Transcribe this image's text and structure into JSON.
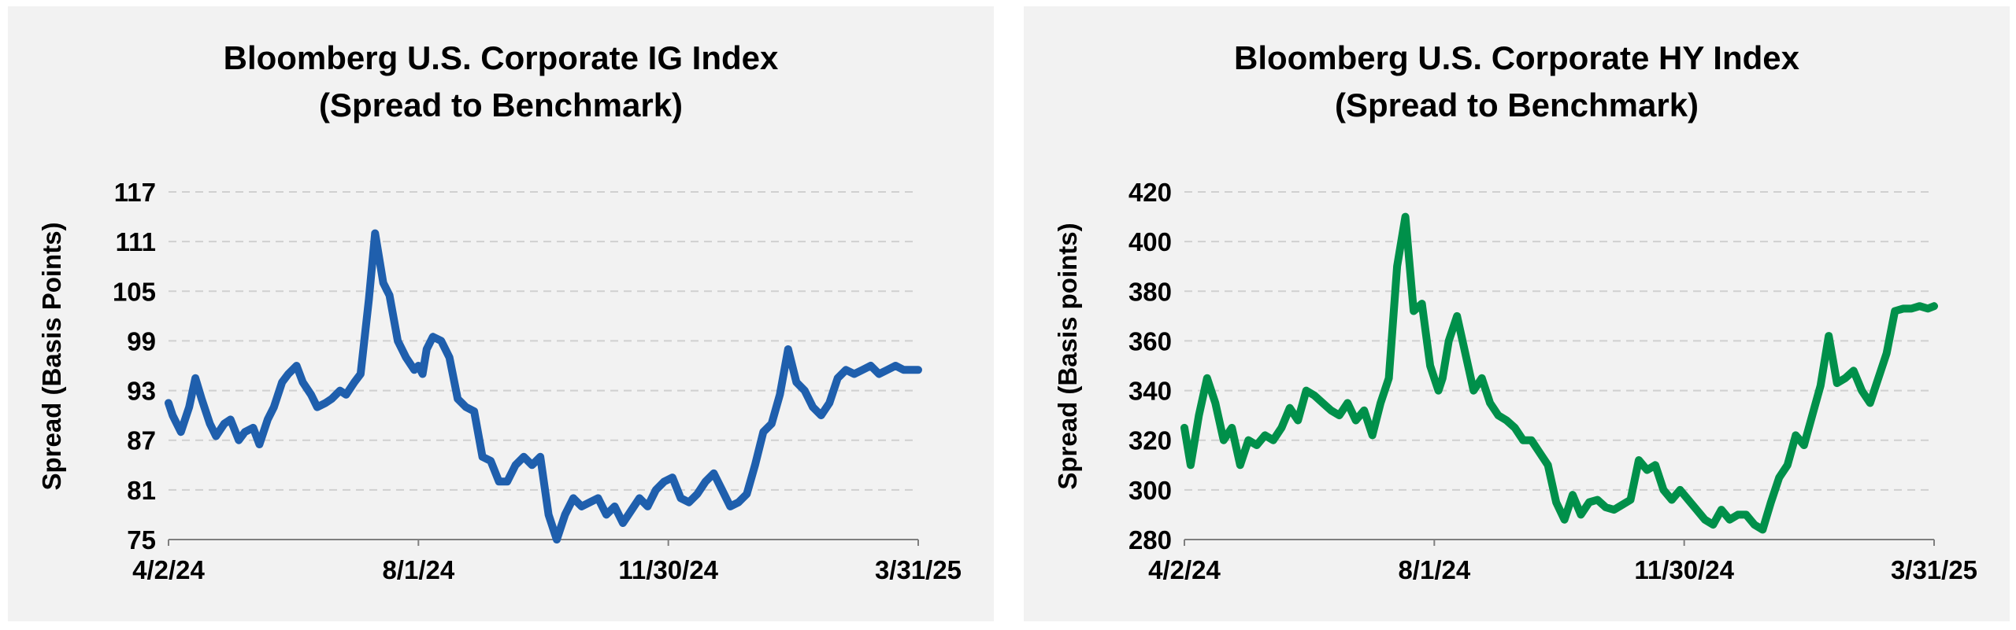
{
  "chart_data": [
    {
      "type": "line",
      "title": [
        "Bloomberg U.S. Corporate  IG Index",
        "(Spread to Benchmark)"
      ],
      "xlabel": "",
      "ylabel": "Spread (Basis Points)",
      "x_ticks": [
        "4/2/24",
        "8/1/24",
        "11/30/24",
        "3/31/25"
      ],
      "x_range": [
        "2024-04-02",
        "2025-03-31"
      ],
      "y_ticks": [
        75,
        81,
        87,
        93,
        99,
        105,
        111,
        117
      ],
      "ylim": [
        75,
        117
      ],
      "grid": true,
      "legend": "none",
      "color": "#1f5fad",
      "series": [
        {
          "x": [
            "2024-04-02",
            "2024-04-04",
            "2024-04-08",
            "2024-04-12",
            "2024-04-15",
            "2024-04-18",
            "2024-04-22",
            "2024-04-25",
            "2024-04-29",
            "2024-05-02",
            "2024-05-06",
            "2024-05-09",
            "2024-05-13",
            "2024-05-16",
            "2024-05-20",
            "2024-05-23",
            "2024-05-27",
            "2024-05-30",
            "2024-06-03",
            "2024-06-06",
            "2024-06-10",
            "2024-06-13",
            "2024-06-17",
            "2024-06-20",
            "2024-06-24",
            "2024-06-27",
            "2024-07-01",
            "2024-07-04",
            "2024-07-08",
            "2024-07-11",
            "2024-07-15",
            "2024-07-18",
            "2024-07-22",
            "2024-07-26",
            "2024-07-30",
            "2024-08-01",
            "2024-08-03",
            "2024-08-05",
            "2024-08-08",
            "2024-08-12",
            "2024-08-16",
            "2024-08-20",
            "2024-08-24",
            "2024-08-28",
            "2024-09-01",
            "2024-09-05",
            "2024-09-09",
            "2024-09-13",
            "2024-09-17",
            "2024-09-21",
            "2024-09-25",
            "2024-09-29",
            "2024-10-03",
            "2024-10-07",
            "2024-10-11",
            "2024-10-15",
            "2024-10-19",
            "2024-10-23",
            "2024-10-27",
            "2024-10-31",
            "2024-11-04",
            "2024-11-08",
            "2024-11-12",
            "2024-11-16",
            "2024-11-20",
            "2024-11-24",
            "2024-11-28",
            "2024-12-02",
            "2024-12-06",
            "2024-12-10",
            "2024-12-14",
            "2024-12-18",
            "2024-12-22",
            "2024-12-26",
            "2024-12-30",
            "2025-01-03",
            "2025-01-07",
            "2025-01-11",
            "2025-01-15",
            "2025-01-19",
            "2025-01-23",
            "2025-01-27",
            "2025-01-31",
            "2025-02-04",
            "2025-02-08",
            "2025-02-12",
            "2025-02-16",
            "2025-02-20",
            "2025-02-24",
            "2025-02-28",
            "2025-03-04",
            "2025-03-08",
            "2025-03-12",
            "2025-03-16",
            "2025-03-20",
            "2025-03-24",
            "2025-03-28",
            "2025-03-31"
          ],
          "y": [
            91.5,
            90,
            88,
            91,
            94.5,
            92,
            89,
            87.5,
            89,
            89.5,
            87,
            88,
            88.5,
            86.5,
            89.5,
            91,
            94,
            95,
            96,
            94,
            92.5,
            91,
            91.5,
            92,
            93,
            92.5,
            94,
            95,
            104,
            112,
            106,
            104.5,
            99,
            97,
            95.5,
            96,
            95,
            98,
            99.5,
            99,
            97,
            92,
            91,
            90.5,
            85,
            84.5,
            82,
            82,
            84,
            85,
            84,
            85,
            78,
            75,
            78,
            80,
            79,
            79.5,
            80,
            78,
            79,
            77,
            78.5,
            80,
            79,
            81,
            82,
            82.5,
            80,
            79.5,
            80.5,
            82,
            83,
            81,
            79,
            79.5,
            80.5,
            84,
            88,
            89,
            92.5,
            98,
            94,
            93,
            91,
            90,
            91.5,
            94.5,
            95.5,
            95,
            95.5,
            96,
            95,
            95.5,
            96,
            95.5,
            95.5,
            95.5
          ]
        }
      ]
    },
    {
      "type": "line",
      "title": [
        "Bloomberg U.S. Corporate HY Index",
        "(Spread to Benchmark)"
      ],
      "xlabel": "",
      "ylabel": "Spread (Basis points)",
      "x_ticks": [
        "4/2/24",
        "8/1/24",
        "11/30/24",
        "3/31/25"
      ],
      "x_range": [
        "2024-04-02",
        "2025-03-31"
      ],
      "y_ticks": [
        280,
        300,
        320,
        340,
        360,
        380,
        400,
        420
      ],
      "ylim": [
        280,
        420
      ],
      "grid": true,
      "legend": "none",
      "color": "#00904a",
      "series": [
        {
          "x": [
            "2024-04-02",
            "2024-04-05",
            "2024-04-09",
            "2024-04-13",
            "2024-04-17",
            "2024-04-21",
            "2024-04-25",
            "2024-04-29",
            "2024-05-03",
            "2024-05-07",
            "2024-05-11",
            "2024-05-15",
            "2024-05-19",
            "2024-05-23",
            "2024-05-27",
            "2024-05-31",
            "2024-06-04",
            "2024-06-08",
            "2024-06-12",
            "2024-06-16",
            "2024-06-20",
            "2024-06-24",
            "2024-06-28",
            "2024-07-02",
            "2024-07-06",
            "2024-07-10",
            "2024-07-14",
            "2024-07-18",
            "2024-07-22",
            "2024-07-26",
            "2024-07-30",
            "2024-08-01",
            "2024-08-03",
            "2024-08-05",
            "2024-08-08",
            "2024-08-12",
            "2024-08-16",
            "2024-08-20",
            "2024-08-24",
            "2024-08-28",
            "2024-09-01",
            "2024-09-05",
            "2024-09-09",
            "2024-09-13",
            "2024-09-17",
            "2024-09-21",
            "2024-09-25",
            "2024-09-29",
            "2024-10-03",
            "2024-10-07",
            "2024-10-11",
            "2024-10-15",
            "2024-10-19",
            "2024-10-23",
            "2024-10-27",
            "2024-10-31",
            "2024-11-04",
            "2024-11-08",
            "2024-11-12",
            "2024-11-16",
            "2024-11-20",
            "2024-11-24",
            "2024-11-28",
            "2024-12-02",
            "2024-12-06",
            "2024-12-10",
            "2024-12-14",
            "2024-12-18",
            "2024-12-22",
            "2024-12-26",
            "2024-12-30",
            "2025-01-03",
            "2025-01-07",
            "2025-01-11",
            "2025-01-15",
            "2025-01-19",
            "2025-01-23",
            "2025-01-27",
            "2025-01-31",
            "2025-02-04",
            "2025-02-08",
            "2025-02-12",
            "2025-02-16",
            "2025-02-20",
            "2025-02-24",
            "2025-02-28",
            "2025-03-04",
            "2025-03-08",
            "2025-03-12",
            "2025-03-16",
            "2025-03-20",
            "2025-03-24",
            "2025-03-28",
            "2025-03-31"
          ],
          "y": [
            325,
            310,
            330,
            345,
            335,
            320,
            325,
            310,
            320,
            318,
            322,
            320,
            325,
            333,
            328,
            340,
            338,
            335,
            332,
            330,
            335,
            328,
            332,
            322,
            335,
            345,
            390,
            410,
            372,
            375,
            350,
            345,
            340,
            345,
            360,
            370,
            355,
            340,
            345,
            335,
            330,
            328,
            325,
            320,
            320,
            315,
            310,
            295,
            288,
            298,
            290,
            295,
            296,
            293,
            292,
            294,
            296,
            312,
            308,
            310,
            300,
            296,
            300,
            296,
            292,
            288,
            286,
            292,
            288,
            290,
            290,
            286,
            284,
            295,
            305,
            310,
            322,
            318,
            330,
            342,
            362,
            343,
            345,
            348,
            340,
            335,
            345,
            355,
            372,
            373,
            373,
            374,
            373,
            374
          ]
        }
      ]
    }
  ]
}
